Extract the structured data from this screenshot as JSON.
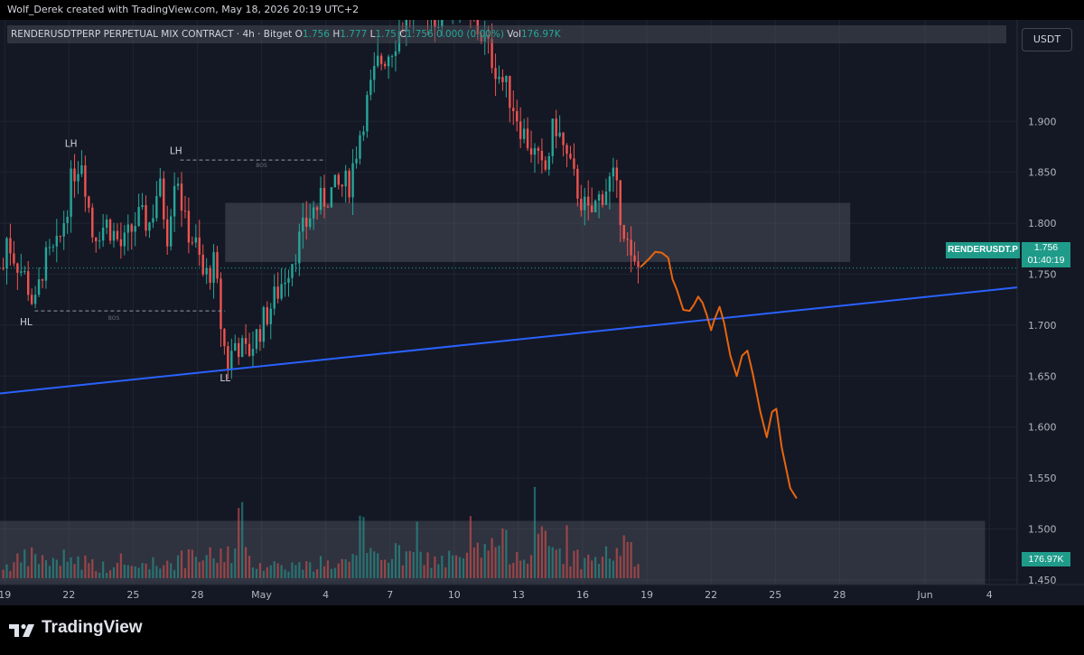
{
  "credit": "Wolf_Derek created with TradingView.com, May 18, 2026 20:19 UTC+2",
  "legend": {
    "symbol": "RENDERUSDTPERP PERPETUAL MIX CONTRACT · 4h · Bitget",
    "open_k": "O",
    "open_v": "1.756",
    "high_k": "H",
    "high_v": "1.777",
    "low_k": "L",
    "low_v": "1.75",
    "close_k": "C",
    "close_v": "1.756",
    "change": "0.000 (0.00%)",
    "vol_k": "Vol",
    "vol_v": "176.97K"
  },
  "currency_button": "USDT",
  "price_tag": {
    "symbol": "RENDERUSDT.P",
    "price": "1.756",
    "countdown": "01:40:19"
  },
  "volume_tag": "176.97K",
  "footer": {
    "brand": "TradingView"
  },
  "colors": {
    "up": "#26a69a",
    "down": "#ef5350",
    "trendline": "#2962ff",
    "projection": "#e8650f",
    "zone": "#787b86",
    "background": "#141824"
  },
  "chart_data": {
    "type": "candlestick",
    "symbol": "RENDERUSDTPERP",
    "timeframe": "4h",
    "y_ticks": [
      1.45,
      1.5,
      1.55,
      1.6,
      1.65,
      1.7,
      1.75,
      1.8,
      1.85,
      1.9
    ],
    "y_tick_labels": [
      "1.450",
      "1.500",
      "1.550",
      "1.600",
      "1.650",
      "1.700",
      "1.750",
      "1.800",
      "1.850",
      "1.900"
    ],
    "ylim": [
      1.4455,
      1.9995
    ],
    "x_ticks": [
      "19",
      "22",
      "25",
      "28",
      "May",
      "4",
      "7",
      "10",
      "13",
      "16",
      "19",
      "22",
      "25",
      "28",
      "Jun",
      "4"
    ],
    "x_tick_days": [
      -12,
      -9,
      -6,
      -3,
      0,
      3,
      6,
      9,
      12,
      15,
      18,
      21,
      24,
      27,
      31,
      34
    ],
    "xlim": [
      -12.22,
      35.3
    ],
    "last_day": 17.7,
    "price_path": [
      [
        -12,
        1.79
      ],
      [
        -11.5,
        1.765
      ],
      [
        -11,
        1.745
      ],
      [
        -10.6,
        1.715
      ],
      [
        -10.2,
        1.76
      ],
      [
        -9.5,
        1.775
      ],
      [
        -8.8,
        1.85
      ],
      [
        -8.4,
        1.865
      ],
      [
        -7.9,
        1.79
      ],
      [
        -7.2,
        1.8
      ],
      [
        -6.5,
        1.775
      ],
      [
        -5.8,
        1.805
      ],
      [
        -5.2,
        1.8
      ],
      [
        -4.8,
        1.84
      ],
      [
        -4.4,
        1.79
      ],
      [
        -4.0,
        1.86
      ],
      [
        -3.6,
        1.8
      ],
      [
        -3.1,
        1.78
      ],
      [
        -2.7,
        1.745
      ],
      [
        -2.2,
        1.76
      ],
      [
        -1.9,
        1.7
      ],
      [
        -1.6,
        1.66
      ],
      [
        -1.2,
        1.685
      ],
      [
        -0.7,
        1.67
      ],
      [
        0,
        1.7
      ],
      [
        0.8,
        1.735
      ],
      [
        1.5,
        1.77
      ],
      [
        2.3,
        1.81
      ],
      [
        3.2,
        1.83
      ],
      [
        4.1,
        1.84
      ],
      [
        4.7,
        1.9
      ],
      [
        5.4,
        1.955
      ],
      [
        6.0,
        1.97
      ],
      [
        6.7,
        2.0
      ],
      [
        7.4,
        2.02
      ],
      [
        8.2,
        2.0
      ],
      [
        9.0,
        2.02
      ],
      [
        9.8,
        2.0
      ],
      [
        10.4,
        1.98
      ],
      [
        11.0,
        1.95
      ],
      [
        11.7,
        1.92
      ],
      [
        12.2,
        1.89
      ],
      [
        12.7,
        1.87
      ],
      [
        13.2,
        1.845
      ],
      [
        13.7,
        1.9
      ],
      [
        14.3,
        1.86
      ],
      [
        14.8,
        1.83
      ],
      [
        15.3,
        1.805
      ],
      [
        15.9,
        1.83
      ],
      [
        16.4,
        1.845
      ],
      [
        16.9,
        1.8
      ],
      [
        17.3,
        1.755
      ],
      [
        17.7,
        1.756
      ]
    ],
    "volume_path": [
      [
        -12,
        0.3
      ],
      [
        -10.6,
        0.55
      ],
      [
        -9.5,
        0.35
      ],
      [
        -8.8,
        0.5
      ],
      [
        -7.2,
        0.25
      ],
      [
        -5.8,
        0.3
      ],
      [
        -4.0,
        0.45
      ],
      [
        -1.9,
        0.55
      ],
      [
        -1.6,
        0.75
      ],
      [
        0,
        0.35
      ],
      [
        2.3,
        0.3
      ],
      [
        4.7,
        0.45
      ],
      [
        5.4,
        0.65
      ],
      [
        6.7,
        0.55
      ],
      [
        9.0,
        0.4
      ],
      [
        10.4,
        0.7
      ],
      [
        11.0,
        0.9
      ],
      [
        12.2,
        0.6
      ],
      [
        12.7,
        1.0
      ],
      [
        14.3,
        0.55
      ],
      [
        15.3,
        0.45
      ],
      [
        16.4,
        0.6
      ],
      [
        16.9,
        0.85
      ],
      [
        17.7,
        0.3
      ]
    ],
    "annotations": [
      {
        "text": "LH",
        "day": -8.9,
        "price": 1.875
      },
      {
        "text": "LH",
        "day": -4.0,
        "price": 1.868
      },
      {
        "text": "HL",
        "day": -11.0,
        "price": 1.7
      },
      {
        "text": "LL",
        "day": -1.7,
        "price": 1.645
      },
      {
        "text": "BOS",
        "day": 0.0,
        "price": 1.855
      },
      {
        "text": "BOS",
        "day": -6.9,
        "price": 1.705
      }
    ],
    "bos_lines": [
      {
        "from_day": -3.8,
        "to_day": 3.0,
        "price": 1.862
      },
      {
        "from_day": -10.6,
        "to_day": -1.7,
        "price": 1.714
      }
    ],
    "zones": [
      {
        "from_day": -1.7,
        "to_day": 27.5,
        "top": 1.82,
        "bottom": 1.762
      }
    ],
    "volume_zone": {
      "from_day": -12.22,
      "to_day": 33.8,
      "top": 1.508,
      "bottom": 1.446
    },
    "trendline": {
      "from": [
        -12.22,
        1.633
      ],
      "to": [
        35.3,
        1.737
      ]
    },
    "projection": [
      [
        17.7,
        1.757
      ],
      [
        18.1,
        1.765
      ],
      [
        18.4,
        1.772
      ],
      [
        18.7,
        1.771
      ],
      [
        19.0,
        1.766
      ],
      [
        19.2,
        1.745
      ],
      [
        19.4,
        1.735
      ],
      [
        19.7,
        1.715
      ],
      [
        20.0,
        1.714
      ],
      [
        20.2,
        1.72
      ],
      [
        20.4,
        1.728
      ],
      [
        20.6,
        1.722
      ],
      [
        20.8,
        1.71
      ],
      [
        21.0,
        1.695
      ],
      [
        21.15,
        1.705
      ],
      [
        21.4,
        1.718
      ],
      [
        21.6,
        1.703
      ],
      [
        21.9,
        1.67
      ],
      [
        22.2,
        1.65
      ],
      [
        22.45,
        1.67
      ],
      [
        22.7,
        1.675
      ],
      [
        22.95,
        1.652
      ],
      [
        23.3,
        1.615
      ],
      [
        23.6,
        1.59
      ],
      [
        23.85,
        1.615
      ],
      [
        24.05,
        1.618
      ],
      [
        24.3,
        1.58
      ],
      [
        24.7,
        1.54
      ],
      [
        25.0,
        1.53
      ]
    ],
    "current_price": 1.756,
    "volume_label": "176.97K"
  }
}
